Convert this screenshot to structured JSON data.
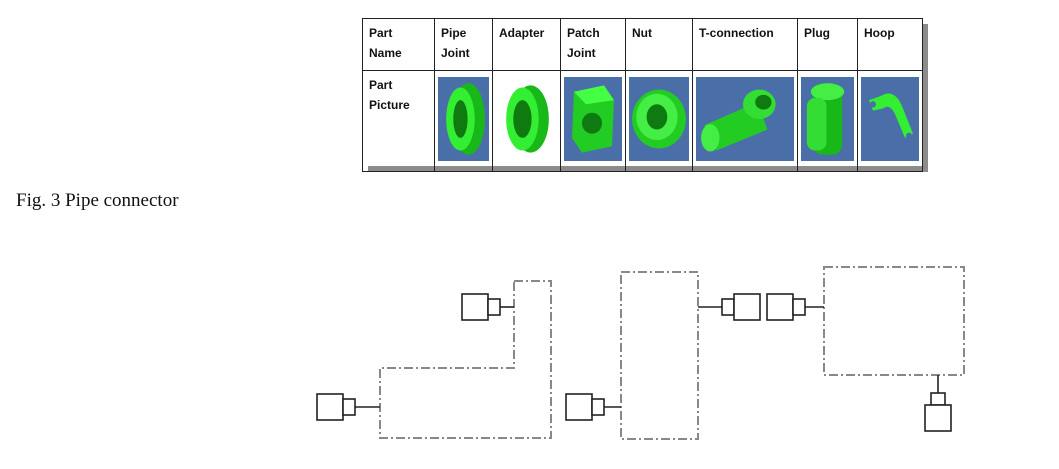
{
  "table": {
    "row_header_1": "Part\nName",
    "row_header_2": "Part\nPicture",
    "parts": [
      {
        "name": "Pipe\nJoint",
        "icon": "pipe-joint-icon"
      },
      {
        "name": "Adapter",
        "icon": "adapter-icon"
      },
      {
        "name": "Patch\nJoint",
        "icon": "patch-joint-icon"
      },
      {
        "name": "Nut",
        "icon": "nut-icon"
      },
      {
        "name": "T-connection",
        "icon": "t-connection-icon"
      },
      {
        "name": "Plug",
        "icon": "plug-icon"
      },
      {
        "name": "Hoop",
        "icon": "hoop-icon"
      }
    ]
  },
  "caption": "Fig. 3 Pipe connector",
  "colors": {
    "part_green": "#22dd22",
    "part_bg": "#4a6fa8",
    "line": "#222222",
    "dash": "#888888"
  }
}
